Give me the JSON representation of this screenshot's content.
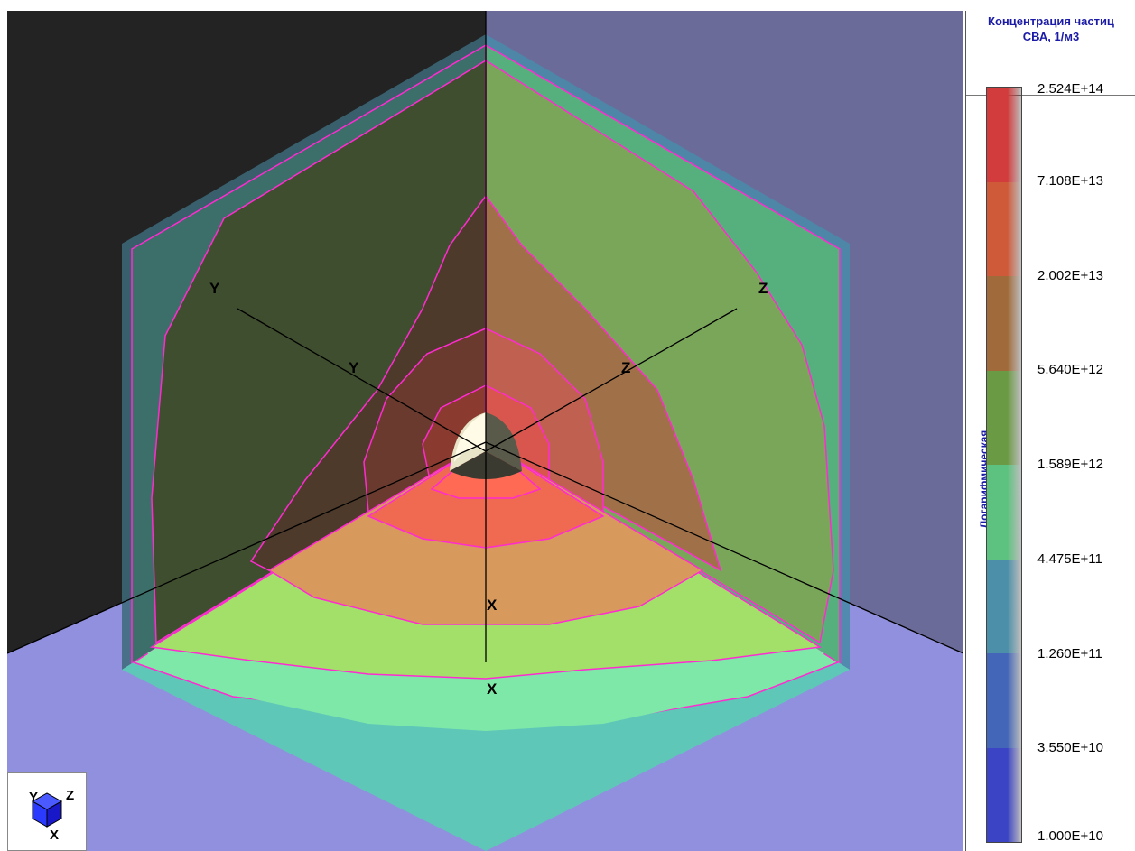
{
  "legend": {
    "title_line1": "Концентрация частиц",
    "title_line2": "СВА, 1/м3",
    "scale_type": "Логарифмическая",
    "ticks": [
      "2.524E+14",
      "7.108E+13",
      "2.002E+13",
      "5.640E+12",
      "1.589E+12",
      "4.475E+11",
      "1.260E+11",
      "3.550E+10",
      "1.000E+10"
    ],
    "band_colors": [
      "#d23c3c",
      "#cf5a3a",
      "#a06a3a",
      "#6b9a45",
      "#5dc27f",
      "#4b8fa8",
      "#4466b8",
      "#3b44c4"
    ]
  },
  "axes": {
    "x_label": "X",
    "y_label": "Y",
    "z_label": "Z"
  },
  "orientation": {
    "y": "Y",
    "z": "Z",
    "x": "X"
  },
  "scene_colors": {
    "left_wall": "#232323",
    "right_wall": "#6b6b9a",
    "floor": "#9090de",
    "contour_line": "#ff2bd0"
  }
}
